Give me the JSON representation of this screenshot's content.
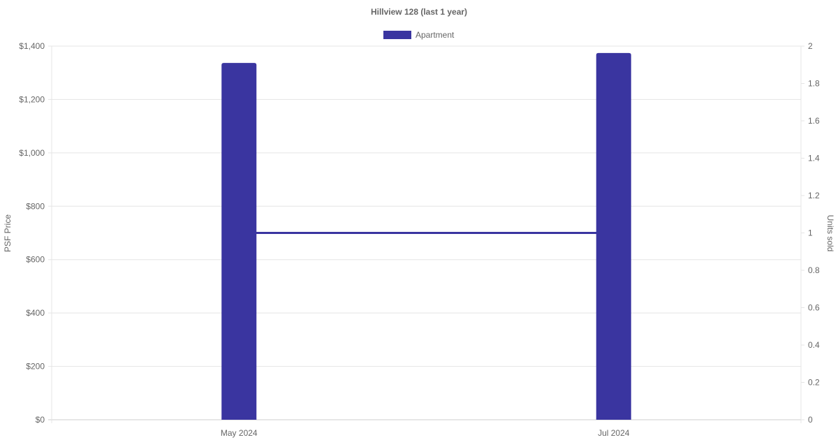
{
  "chart_data": {
    "type": "bar",
    "title": "Hillview 128 (last 1 year)",
    "categories": [
      "May 2024",
      "Jul 2024"
    ],
    "series": [
      {
        "name": "Apartment",
        "type": "bar",
        "axis": "left",
        "values": [
          1337,
          1374
        ],
        "color": "#3a35a0"
      },
      {
        "type": "line",
        "axis": "right",
        "values": [
          1,
          1
        ],
        "color": "#3a35a0"
      }
    ],
    "ylabel": "PSF Price",
    "y2label": "Units sold",
    "ylim": [
      0,
      1400
    ],
    "y2lim": [
      0,
      2
    ],
    "yticks": [
      "$0",
      "$200",
      "$400",
      "$600",
      "$800",
      "$1,000",
      "$1,200",
      "$1,400"
    ],
    "y2ticks": [
      "0",
      "0.2",
      "0.4",
      "0.6",
      "0.8",
      "1",
      "1.2",
      "1.4",
      "1.6",
      "1.8",
      "2"
    ],
    "grid": true,
    "legend": "top"
  }
}
